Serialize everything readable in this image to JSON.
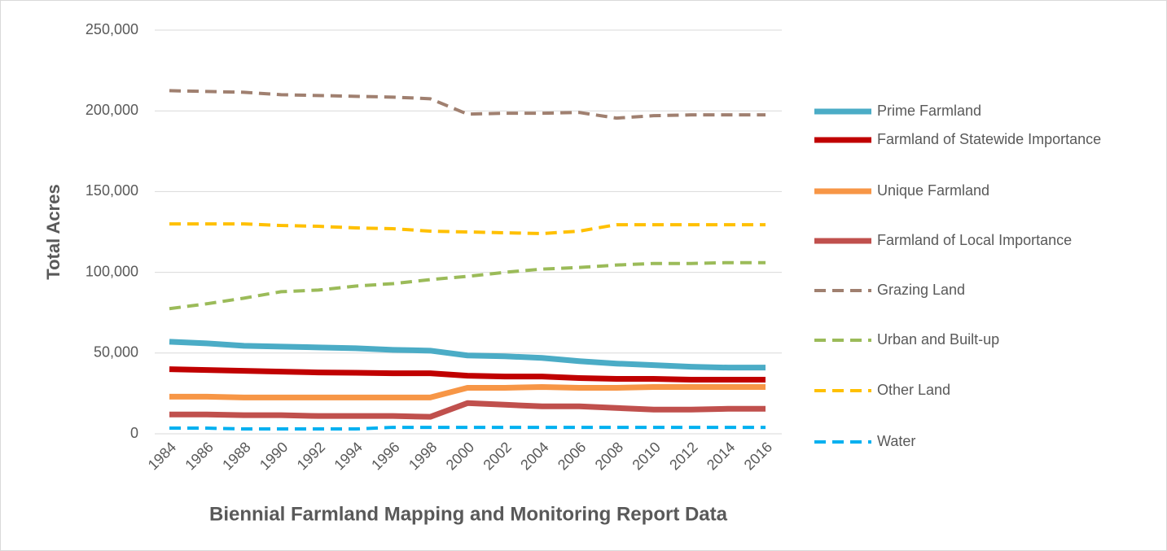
{
  "chart_data": {
    "type": "line",
    "y_label": "Total Acres",
    "x_label": "Biennial Farmland Mapping and Monitoring Report Data",
    "categories": [
      "1984",
      "1986",
      "1988",
      "1990",
      "1992",
      "1994",
      "1996",
      "1998",
      "2000",
      "2002",
      "2004",
      "2006",
      "2008",
      "2010",
      "2012",
      "2014",
      "2016"
    ],
    "ylim": [
      0,
      250000
    ],
    "yticks": [
      0,
      {
        "value": 50000,
        "label": "50,000"
      },
      {
        "value": 100000,
        "label": "100,000"
      },
      {
        "value": 150000,
        "label": "150,000"
      },
      {
        "value": 200000,
        "label": "200,000"
      },
      {
        "value": 250000,
        "label": "250,000"
      }
    ],
    "grid": true,
    "legend": "right",
    "series": [
      {
        "name": "Prime Farmland",
        "color": "#4bacc6",
        "dashed": false,
        "values": [
          57000,
          56000,
          54500,
          54000,
          53500,
          53000,
          52000,
          51500,
          48500,
          48000,
          47000,
          45000,
          43500,
          42500,
          41500,
          41000,
          41000
        ]
      },
      {
        "name": "Farmland of Statewide Importance",
        "color": "#c00000",
        "dashed": false,
        "values": [
          40000,
          39500,
          39000,
          38500,
          38000,
          37800,
          37500,
          37500,
          36000,
          35500,
          35500,
          34500,
          34000,
          34000,
          33500,
          33500,
          33500
        ]
      },
      {
        "name": "Unique Farmland",
        "color": "#f79646",
        "dashed": false,
        "values": [
          23000,
          23000,
          22500,
          22500,
          22500,
          22500,
          22500,
          22500,
          28500,
          28500,
          29000,
          28500,
          28500,
          29000,
          29000,
          29000,
          29000
        ]
      },
      {
        "name": "Farmland of Local Importance",
        "color": "#c0504d",
        "dashed": false,
        "values": [
          12000,
          12000,
          11500,
          11500,
          11000,
          11000,
          11000,
          10500,
          19000,
          18000,
          17000,
          17000,
          16000,
          15000,
          15000,
          15500,
          15500
        ]
      },
      {
        "name": "Grazing Land",
        "color": "#a08070",
        "dashed": true,
        "values": [
          212500,
          212000,
          211500,
          210000,
          209500,
          209000,
          208500,
          207500,
          198000,
          198500,
          198500,
          199000,
          195500,
          197000,
          197500,
          197500,
          197500
        ]
      },
      {
        "name": "Urban and Built-up",
        "color": "#9bbb59",
        "dashed": true,
        "values": [
          77500,
          80500,
          84000,
          88000,
          89000,
          91500,
          93000,
          95500,
          97500,
          100000,
          102000,
          103000,
          104500,
          105500,
          105500,
          106000,
          106000
        ]
      },
      {
        "name": "Other Land",
        "color": "#ffc000",
        "dashed": true,
        "values": [
          130000,
          130000,
          130000,
          129000,
          128500,
          127500,
          127000,
          125500,
          125000,
          124500,
          124000,
          125500,
          129500,
          129500,
          129500,
          129500,
          129500
        ]
      },
      {
        "name": "Water",
        "color": "#00b0f0",
        "dashed": true,
        "values": [
          3500,
          3500,
          3000,
          3000,
          3000,
          3000,
          4000,
          4000,
          4000,
          4000,
          4000,
          4000,
          4000,
          4000,
          4000,
          4000,
          4000
        ]
      }
    ]
  }
}
